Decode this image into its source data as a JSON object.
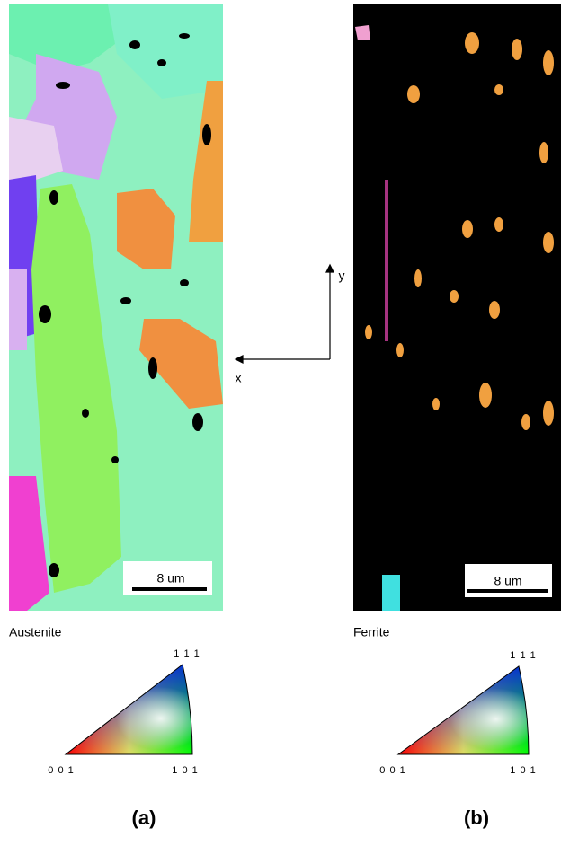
{
  "panels": [
    {
      "phase": "Austenite",
      "scale_bar": "8 um",
      "caption": "(a)",
      "corners": {
        "top": "1 1 1",
        "left": "0 0 1",
        "right": "1 0 1"
      }
    },
    {
      "phase": "Ferrite",
      "scale_bar": "8 um",
      "caption": "(b)",
      "corners": {
        "top": "1 1 1",
        "left": "0 0 1",
        "right": "1 0 1"
      }
    }
  ],
  "axes": {
    "x": "x",
    "y": "y"
  }
}
